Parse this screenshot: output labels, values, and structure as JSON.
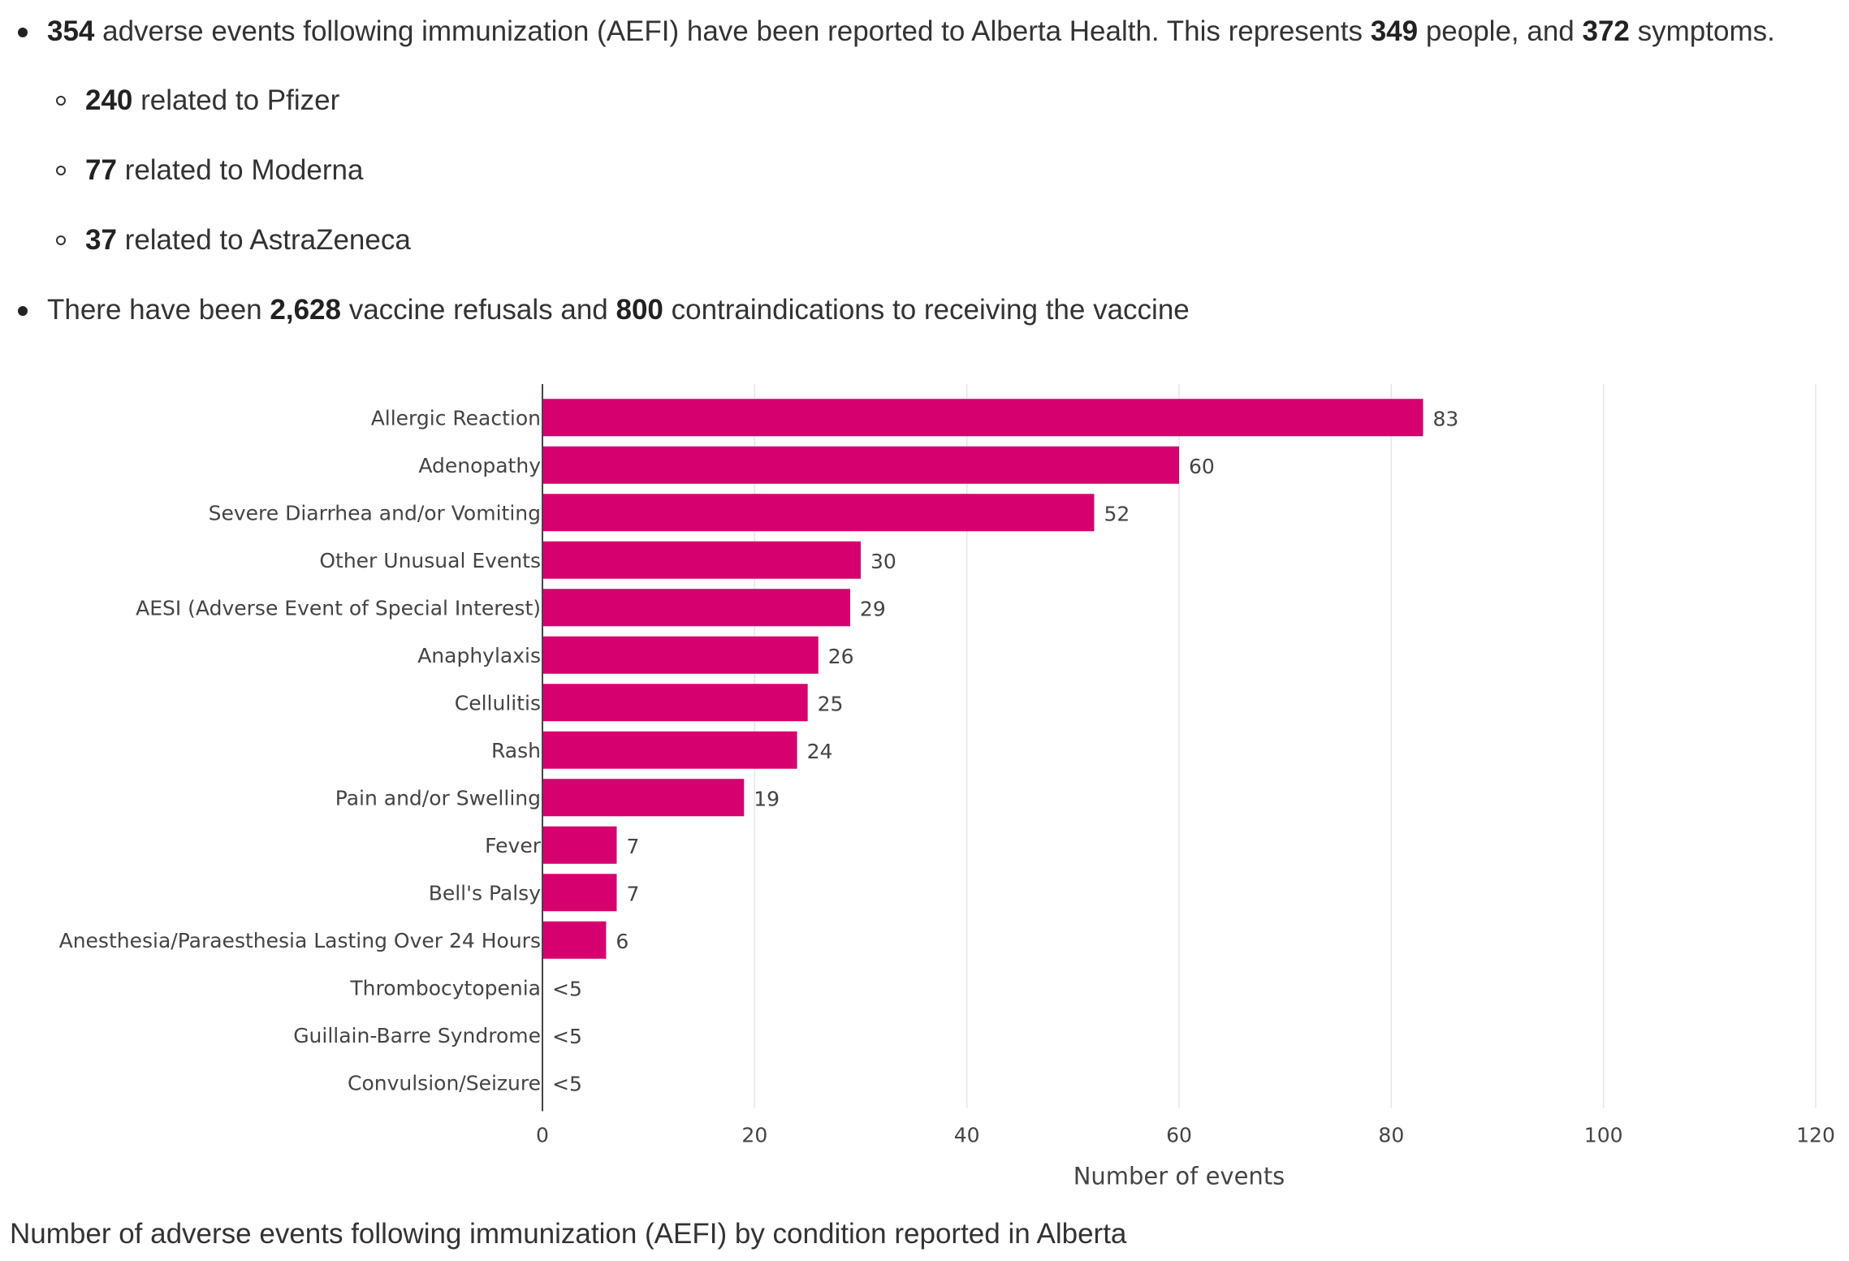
{
  "summary": {
    "line1": {
      "n1": "354",
      "t1": " adverse events following immunization (AEFI) have been reported to Alberta Health. This represents ",
      "n2": "349",
      "t2": " people, and ",
      "n3": "372",
      "t3": " symptoms."
    },
    "vaccines": [
      {
        "count": "240",
        "text": " related to Pfizer"
      },
      {
        "count": "77",
        "text": " related to Moderna"
      },
      {
        "count": "37",
        "text": " related to AstraZeneca"
      }
    ],
    "line2": {
      "t1": "There have been ",
      "n1": "2,628",
      "t2": " vaccine refusals and ",
      "n2": "800",
      "t3": " contraindications to receiving the vaccine"
    }
  },
  "chart_data": {
    "type": "bar",
    "orientation": "horizontal",
    "categories": [
      "Allergic Reaction",
      "Adenopathy",
      "Severe Diarrhea and/or Vomiting",
      "Other Unusual Events",
      "AESI (Adverse Event of Special Interest)",
      "Anaphylaxis",
      "Cellulitis",
      "Rash",
      "Pain and/or Swelling",
      "Fever",
      "Bell's Palsy",
      "Anesthesia/Paraesthesia Lasting Over 24 Hours",
      "Thrombocytopenia",
      "Guillain-Barre Syndrome",
      "Convulsion/Seizure"
    ],
    "values": [
      83,
      60,
      52,
      30,
      29,
      26,
      25,
      24,
      19,
      7,
      7,
      6,
      0,
      0,
      0
    ],
    "data_labels": [
      "83",
      "60",
      "52",
      "30",
      "29",
      "26",
      "25",
      "24",
      "19",
      "7",
      "7",
      "6",
      "<5",
      "<5",
      "<5"
    ],
    "xlabel": "Number of events",
    "ylabel": "",
    "xlim": [
      0,
      120
    ],
    "xticks": [
      0,
      20,
      40,
      60,
      80,
      100,
      120
    ],
    "grid": "vertical",
    "bar_color": "#d6006f"
  },
  "caption": "Number of adverse events following immunization (AEFI) by condition reported in Alberta"
}
